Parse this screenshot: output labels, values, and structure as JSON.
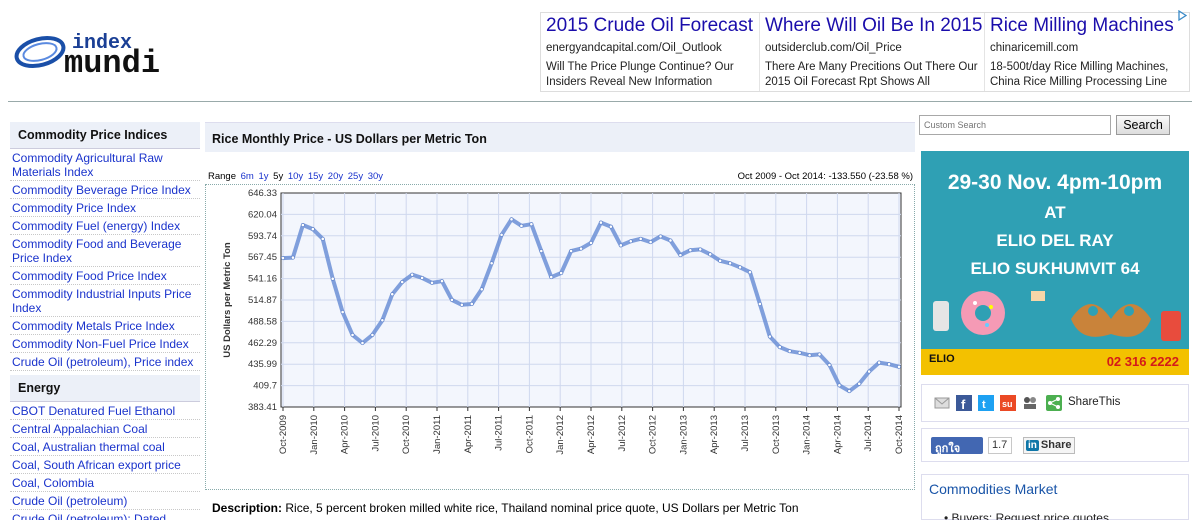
{
  "logo": {
    "line1": "index",
    "line2": "mundi"
  },
  "ads": [
    {
      "title": "2015 Crude Oil Forecast",
      "url": "energyandcapital.com/Oil_Outlook",
      "desc": "Will The Price Plunge Continue? Our Insiders Reveal New Information"
    },
    {
      "title": "Where Will Oil Be In 2015",
      "url": "outsiderclub.com/Oil_Price",
      "desc": "There Are Many Precitions Out There Our 2015 Oil Forecast Rpt Shows All"
    },
    {
      "title": "Rice Milling Machines",
      "url": "chinaricemill.com",
      "desc": "18-500t/day Rice Milling Machines, China Rice Milling Processing Line"
    }
  ],
  "sidebar": {
    "section1_title": "Commodity Price Indices",
    "section1_items": [
      "Commodity Agricultural Raw Materials Index",
      "Commodity Beverage Price Index",
      "Commodity Price Index",
      "Commodity Fuel (energy) Index",
      "Commodity Food and Beverage Price Index",
      "Commodity Food Price Index",
      "Commodity Industrial Inputs Price Index",
      "Commodity Metals Price Index",
      "Commodity Non-Fuel Price Index",
      "Crude Oil (petroleum), Price index"
    ],
    "section2_title": "Energy",
    "section2_items": [
      "CBOT Denatured Fuel Ethanol",
      "Central Appalachian Coal",
      "Coal, Australian thermal coal",
      "Coal, South African export price",
      "Coal, Colombia",
      "Crude Oil (petroleum)",
      "Crude Oil (petroleum); Dated Brent"
    ]
  },
  "main": {
    "title": "Rice Monthly Price - US Dollars per Metric Ton",
    "range_label": "Range",
    "ranges": [
      "6m",
      "1y",
      "5y",
      "10y",
      "15y",
      "20y",
      "25y",
      "30y"
    ],
    "selected_range": "5y",
    "range_info": "Oct 2009 - Oct 2014: -133.550 (-23.58 %)",
    "description_label": "Description:",
    "description": "Rice, 5 percent broken milled white rice, Thailand nominal price quote, US Dollars per Metric Ton"
  },
  "chart_data": {
    "type": "line",
    "title": "",
    "xlabel": "",
    "ylabel": "US Dollars per Metric Ton",
    "ylim": [
      383.41,
      646.33
    ],
    "yticks": [
      383.41,
      409.7,
      435.99,
      462.29,
      488.58,
      514.87,
      541.16,
      567.45,
      593.74,
      620.04,
      646.33
    ],
    "xticks": [
      "Oct-2009",
      "Jan-2010",
      "Apr-2010",
      "Jul-2010",
      "Oct-2010",
      "Jan-2011",
      "Apr-2011",
      "Jul-2011",
      "Oct-2011",
      "Jan-2012",
      "Apr-2012",
      "Jul-2012",
      "Oct-2012",
      "Jan-2013",
      "Apr-2013",
      "Jul-2013",
      "Oct-2013",
      "Jan-2014",
      "Apr-2014",
      "Jul-2014",
      "Oct-2014"
    ],
    "grid": true,
    "color": "#6b8fd6",
    "series": [
      {
        "values": [
          566.4,
          567,
          607,
          602,
          590,
          541,
          500,
          472,
          462,
          472,
          490,
          522,
          537,
          546,
          542,
          536,
          538,
          515,
          509,
          510,
          528,
          560,
          595,
          614,
          606,
          608,
          575,
          543,
          548,
          575,
          578,
          585,
          610,
          605,
          582,
          587,
          590,
          586,
          593,
          588,
          570,
          576,
          577,
          571,
          563,
          560,
          555,
          549,
          510,
          470,
          457,
          452,
          450,
          447,
          448,
          435,
          410,
          403,
          412,
          427,
          438,
          436,
          432.85
        ]
      }
    ]
  },
  "right": {
    "search_placeholder": "Custom Search",
    "search_button": "Search",
    "promo": {
      "line1": "29-30 Nov. 4pm-10pm",
      "line2": "AT",
      "line3": "ELIO DEL RAY",
      "line4": "ELIO SUKHUMVIT 64",
      "brand": "ELIO",
      "phone": "02 316 2222"
    },
    "share_text": "ShareThis",
    "fb_like": "ถูกใจ",
    "fb_count": "1.7",
    "li_share": "Share",
    "market_title": "Commodities Market",
    "market_item": "Buyers: Request price quotes"
  }
}
